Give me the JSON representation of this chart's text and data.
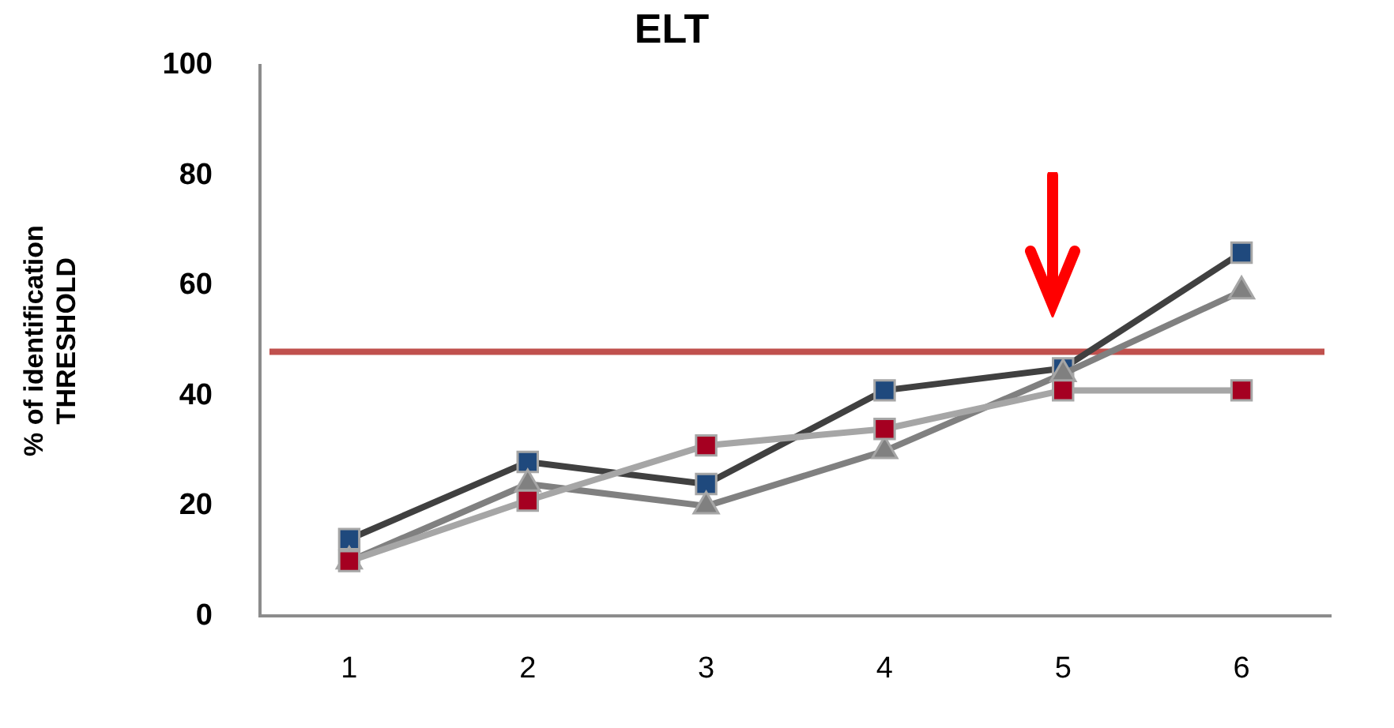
{
  "chart_data": {
    "type": "line",
    "title": "ELT",
    "ylabel": "% of identification\nTHRESHOLD",
    "categories": [
      "1",
      "2",
      "3",
      "4",
      "5",
      "6"
    ],
    "series": [
      {
        "color": "#a6a6a6",
        "colors": [
          "#a50021",
          "#a50021",
          "#a50021",
          "#a50021",
          "#a50021",
          "#a50021"
        ],
        "marker": "square",
        "values": [
          10,
          21,
          31,
          34,
          41,
          41
        ]
      },
      {
        "color": "#808080",
        "colors": [
          "#808080",
          "#808080",
          "#808080",
          "#808080",
          "#808080",
          "#808080"
        ],
        "marker": "triangle",
        "values": [
          10,
          24,
          20,
          30,
          44,
          59
        ]
      },
      {
        "color": "#404040",
        "colors": [
          "#1f497d",
          "#1f497d",
          "#1f497d",
          "#1f497d",
          "#1f497d",
          "#1f497d"
        ],
        "marker": "square",
        "values": [
          14,
          28,
          24,
          41,
          45,
          66
        ]
      }
    ],
    "ylim": [
      0,
      100
    ],
    "yticks": [
      0,
      20,
      40,
      60,
      80,
      100
    ],
    "grid": false,
    "legend": false,
    "ref_lines": [
      {
        "axis": "y",
        "value": 48,
        "color": "#c0504d"
      }
    ]
  }
}
